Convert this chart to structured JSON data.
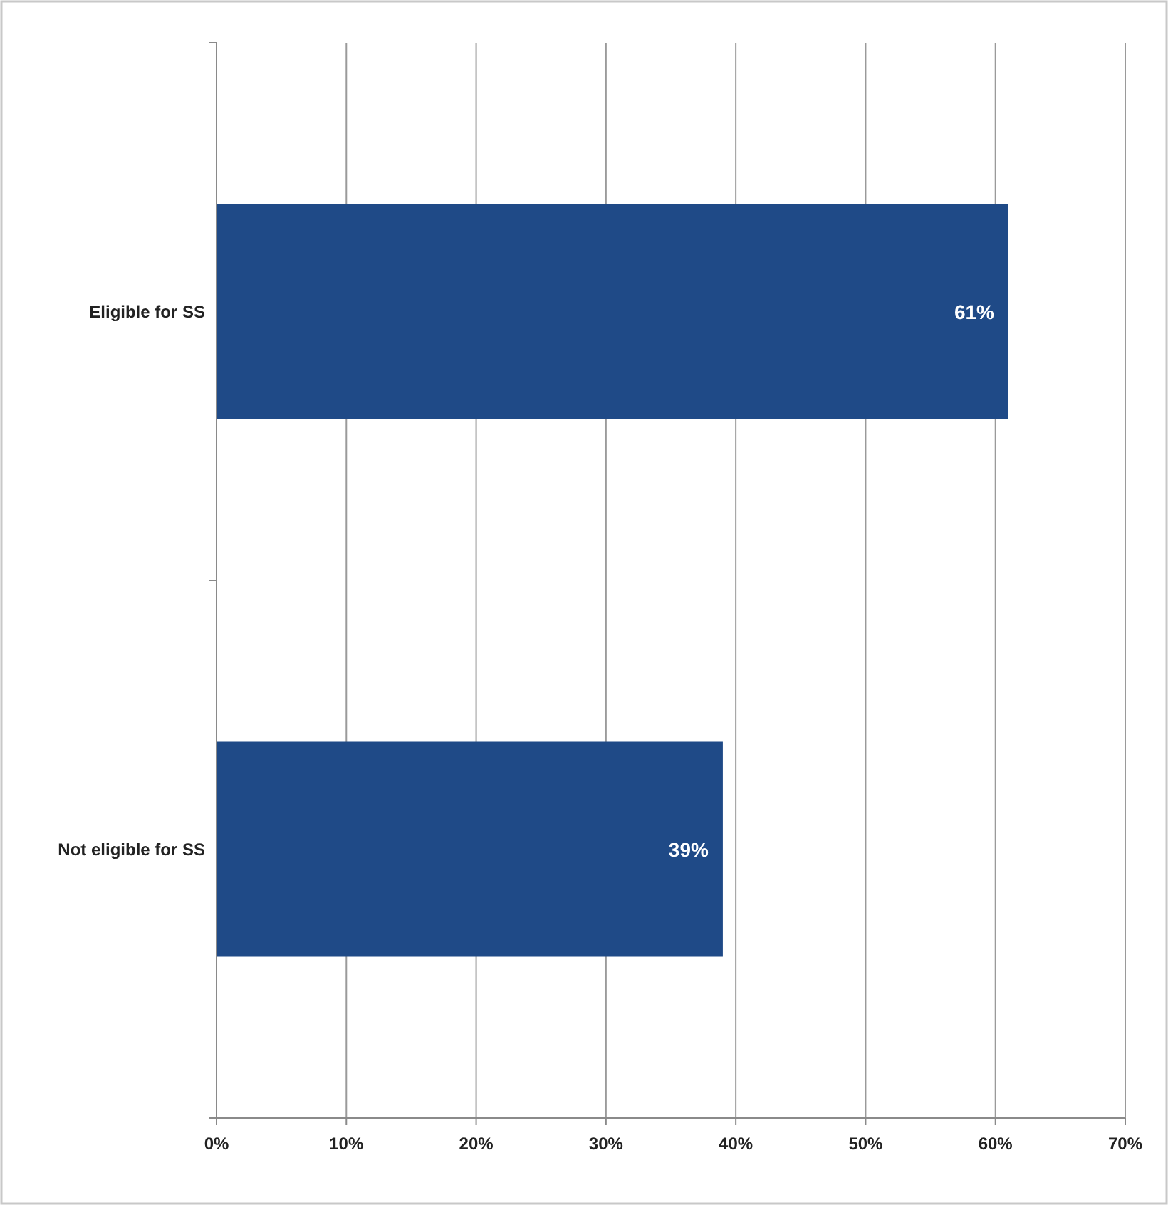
{
  "chart_data": {
    "type": "bar",
    "orientation": "horizontal",
    "categories": [
      "Eligible for SS",
      "Not eligible for SS"
    ],
    "values": [
      61,
      39
    ],
    "value_labels": [
      "61%",
      "39%"
    ],
    "color": "#1f4a87",
    "xlim": [
      0,
      70
    ],
    "xticks": [
      {
        "value": 0,
        "label": "0%"
      },
      {
        "value": 10,
        "label": "10%"
      },
      {
        "value": 20,
        "label": "20%"
      },
      {
        "value": 30,
        "label": "30%"
      },
      {
        "value": 40,
        "label": "40%"
      },
      {
        "value": 50,
        "label": "50%"
      },
      {
        "value": 60,
        "label": "60%"
      },
      {
        "value": 70,
        "label": "70%"
      }
    ],
    "grid": "x"
  }
}
